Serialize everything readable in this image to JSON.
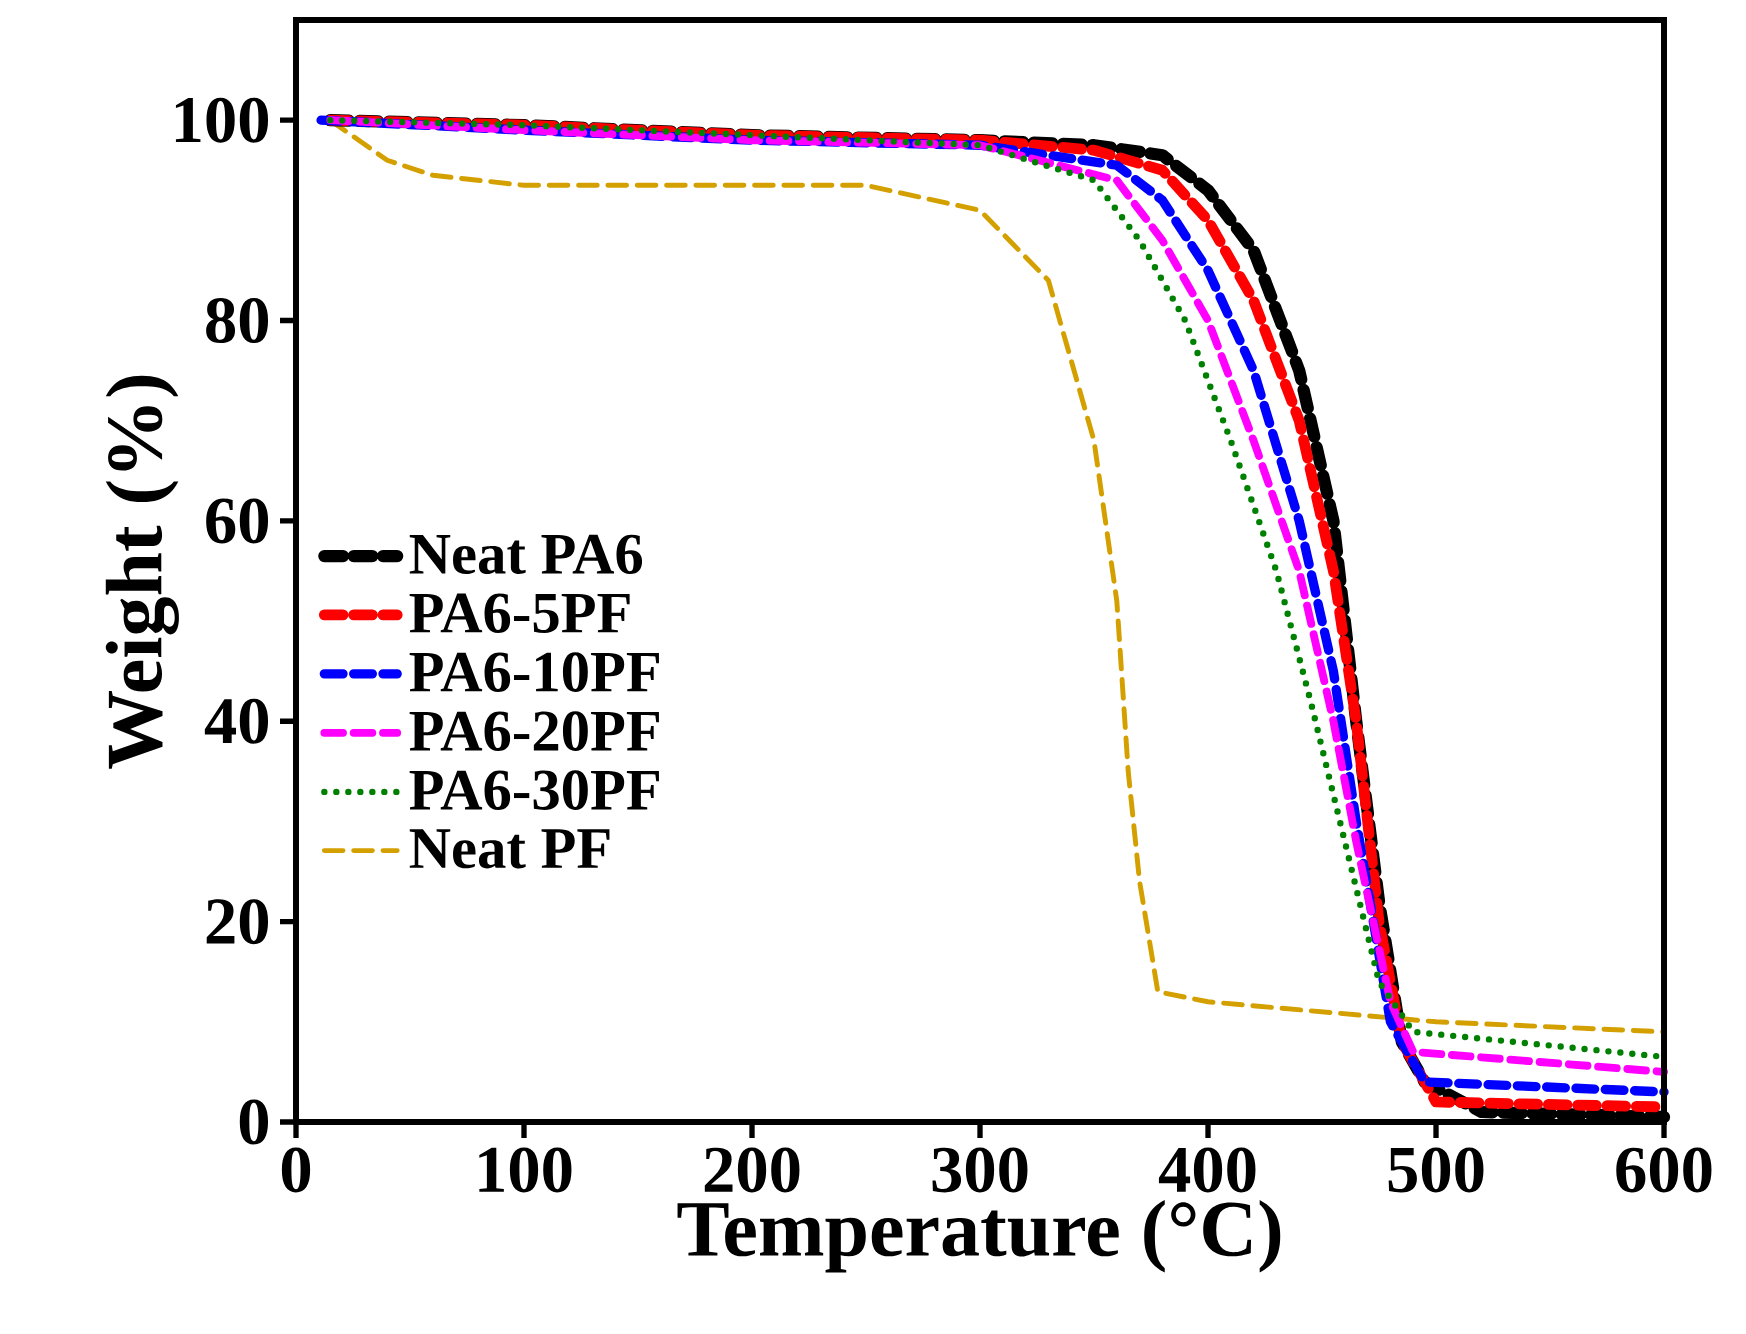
{
  "chart_data": {
    "type": "line",
    "xlabel": "Temperature (°C)",
    "ylabel": "Weight (%)",
    "xlim": [
      0,
      600
    ],
    "ylim": [
      0,
      110
    ],
    "xticks": [
      0,
      100,
      200,
      300,
      400,
      500,
      600
    ],
    "yticks": [
      0,
      20,
      40,
      60,
      80,
      100
    ],
    "grid": false,
    "legend": "left",
    "marker": "none",
    "series": [
      {
        "name": "Neat PA6",
        "color": "#000000",
        "line_style": "dashed",
        "x": [
          15,
          100,
          200,
          300,
          350,
          380,
          400,
          420,
          440,
          455,
          465,
          475,
          485,
          495,
          520,
          600
        ],
        "values": [
          100,
          99.5,
          98.5,
          98,
          97.5,
          96.5,
          93,
          87,
          75,
          60,
          40,
          22,
          8,
          4,
          1,
          0.5
        ]
      },
      {
        "name": "PA6-5PF",
        "color": "#ff0000",
        "line_style": "dashed",
        "x": [
          15,
          100,
          200,
          300,
          350,
          380,
          400,
          420,
          440,
          455,
          465,
          475,
          485,
          500,
          600
        ],
        "values": [
          100,
          99.5,
          98.5,
          98,
          97,
          95,
          90,
          82,
          70,
          55,
          40,
          20,
          8,
          2,
          1.5
        ]
      },
      {
        "name": "PA6-10PF",
        "color": "#0000ff",
        "line_style": "dashed",
        "x": [
          11,
          100,
          200,
          300,
          360,
          380,
          400,
          420,
          440,
          455,
          465,
          480,
          495,
          600
        ],
        "values": [
          100,
          99,
          98,
          97.5,
          95.5,
          92,
          85,
          75,
          60,
          45,
          30,
          10,
          4,
          3
        ]
      },
      {
        "name": "PA6-20PF",
        "color": "#ff00ff",
        "line_style": "dashed",
        "x": [
          15,
          100,
          200,
          300,
          360,
          380,
          400,
          420,
          440,
          455,
          465,
          480,
          490,
          600
        ],
        "values": [
          100,
          99,
          98,
          97.5,
          94,
          88,
          80,
          68,
          55,
          40,
          28,
          12,
          7,
          5
        ]
      },
      {
        "name": "PA6-30PF",
        "color": "#008000",
        "line_style": "dotted",
        "x": [
          15,
          100,
          200,
          300,
          350,
          370,
          390,
          410,
          430,
          445,
          460,
          475,
          490,
          600
        ],
        "values": [
          100,
          99.5,
          98.5,
          97.5,
          94,
          88,
          80,
          68,
          55,
          42,
          28,
          14,
          9,
          6.5
        ]
      },
      {
        "name": "Neat PF",
        "color": "#d4a000",
        "line_style": "dashed",
        "x": [
          15,
          40,
          60,
          100,
          250,
          300,
          330,
          350,
          360,
          365,
          370,
          378,
          400,
          500,
          600
        ],
        "values": [
          100,
          96,
          94.5,
          93.5,
          93.5,
          91,
          84,
          68,
          52,
          35,
          24,
          13,
          12,
          10,
          9
        ]
      }
    ]
  }
}
